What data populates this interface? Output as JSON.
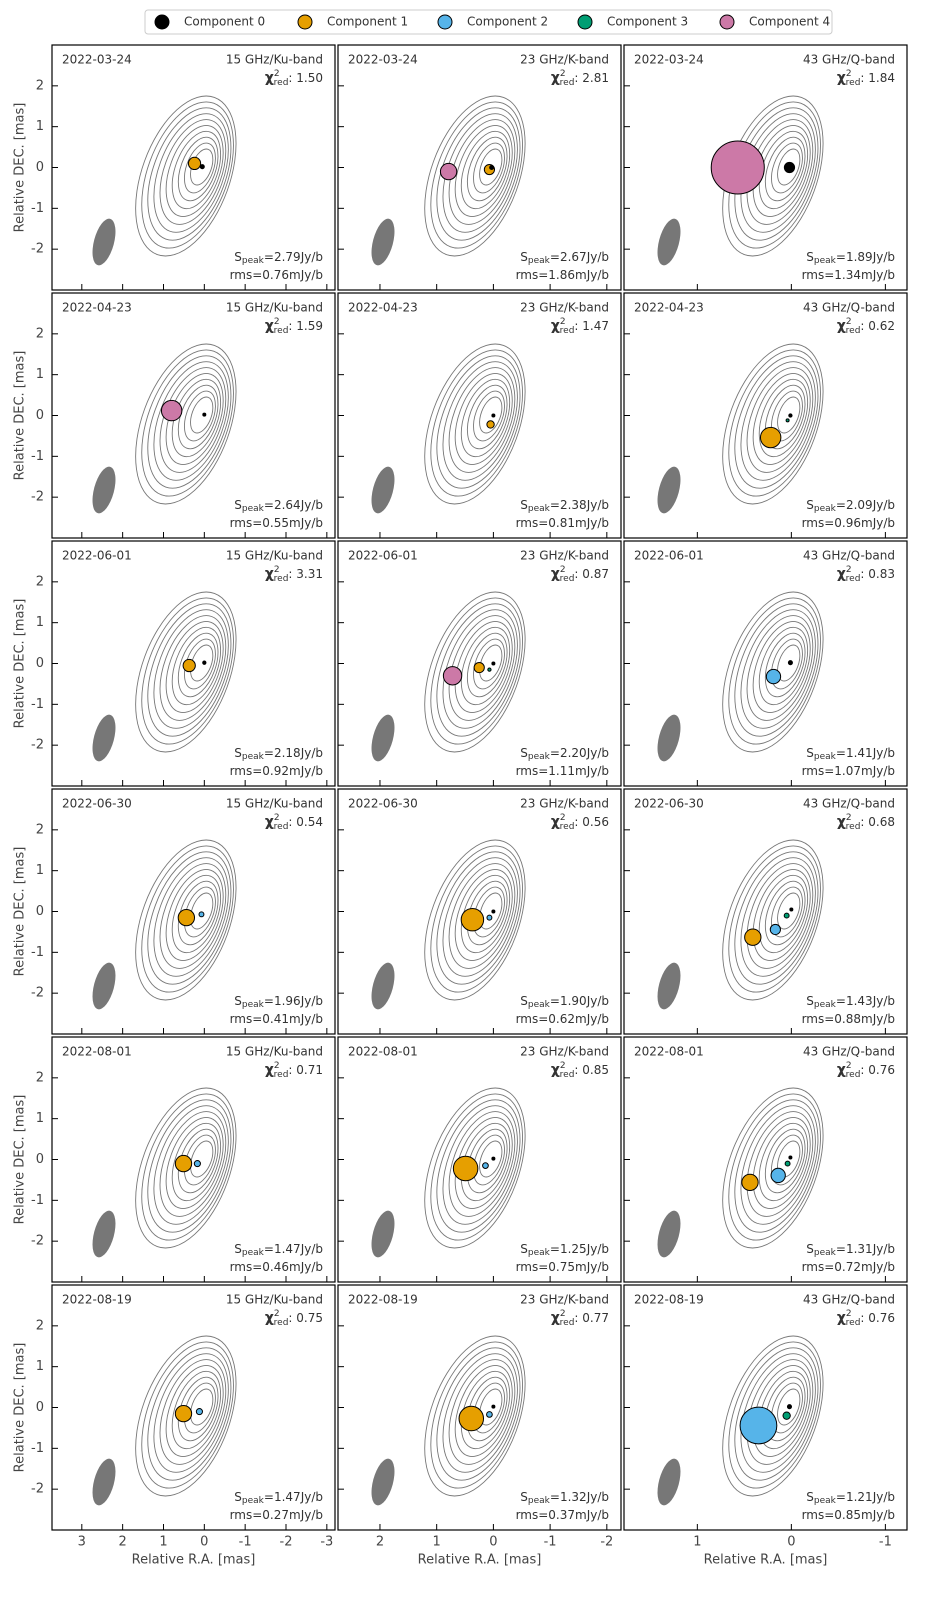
{
  "legend": [
    {
      "name": "Component 0",
      "color": "#000000"
    },
    {
      "name": "Component 1",
      "color": "#e69f00"
    },
    {
      "name": "Component 2",
      "color": "#56b4e9"
    },
    {
      "name": "Component 3",
      "color": "#009e73"
    },
    {
      "name": "Component 4",
      "color": "#cc79a7"
    }
  ],
  "labels": {
    "s": "S",
    "peak": "peak",
    "eq": "=",
    "rms": "rms=",
    "chi": "χ",
    "sup": "2",
    "red": "red",
    "colon": ": "
  },
  "chart_data": [
    {
      "type": "scatter",
      "date": "2022-03-24",
      "band": "15 GHz/Ku-band",
      "chi2": "1.50",
      "speak": "2.79Jy/b",
      "rms": "0.76mJy/b",
      "ylabel": "Relative DEC. [mas]",
      "xlim": [
        3.73,
        -3.2
      ],
      "ylim": [
        -3,
        3
      ],
      "xticks": [
        3,
        2,
        1,
        0,
        -1,
        -2,
        -3
      ],
      "yticks": [
        -2,
        -1,
        0,
        1,
        2
      ],
      "series": [
        {
          "name": "Component 1",
          "x": [
            0.24
          ],
          "values": [
            0.1
          ],
          "sizes": [
            0.3
          ]
        },
        {
          "name": "Component 0",
          "x": [
            0.05
          ],
          "values": [
            0.02
          ],
          "sizes": [
            0.1
          ]
        }
      ]
    },
    {
      "type": "scatter",
      "date": "2022-03-24",
      "band": "23 GHz/K-band",
      "chi2": "2.81",
      "speak": "2.67Jy/b",
      "rms": "1.86mJy/b",
      "xlim": [
        2.74,
        -2.25
      ],
      "ylim": [
        -3,
        3
      ],
      "xticks": [
        2,
        1,
        0,
        -1,
        -2
      ],
      "yticks": [
        -2,
        -1,
        0,
        1,
        2
      ],
      "series": [
        {
          "name": "Component 4",
          "x": [
            0.79
          ],
          "values": [
            -0.1
          ],
          "sizes": [
            0.4
          ]
        },
        {
          "name": "Component 1",
          "x": [
            0.07
          ],
          "values": [
            -0.05
          ],
          "sizes": [
            0.25
          ]
        },
        {
          "name": "Component 0",
          "x": [
            0.03
          ],
          "values": [
            0
          ],
          "sizes": [
            0.1
          ]
        }
      ]
    },
    {
      "type": "scatter",
      "date": "2022-03-24",
      "band": "43 GHz/Q-band",
      "chi2": "1.84",
      "speak": "1.89Jy/b",
      "rms": "1.34mJy/b",
      "xlim": [
        1.78,
        -1.23
      ],
      "ylim": [
        -3,
        3
      ],
      "xticks": [
        1,
        0,
        -1
      ],
      "yticks": [
        -2,
        -1,
        0,
        1,
        2
      ],
      "series": [
        {
          "name": "Component 4",
          "x": [
            0.57
          ],
          "values": [
            0
          ],
          "sizes": [
            1.3
          ]
        },
        {
          "name": "Component 0",
          "x": [
            0.02
          ],
          "values": [
            0
          ],
          "sizes": [
            0.25
          ]
        }
      ]
    },
    {
      "type": "scatter",
      "date": "2022-04-23",
      "band": "15 GHz/Ku-band",
      "chi2": "1.59",
      "speak": "2.64Jy/b",
      "rms": "0.55mJy/b",
      "ylabel": "Relative DEC. [mas]",
      "xlim": [
        3.73,
        -3.2
      ],
      "ylim": [
        -3,
        3
      ],
      "xticks": [
        3,
        2,
        1,
        0,
        -1,
        -2,
        -3
      ],
      "yticks": [
        -2,
        -1,
        0,
        1,
        2
      ],
      "series": [
        {
          "name": "Component 4",
          "x": [
            0.8
          ],
          "values": [
            0.12
          ],
          "sizes": [
            0.5
          ]
        },
        {
          "name": "Component 0",
          "x": [
            0
          ],
          "values": [
            0.02
          ],
          "sizes": [
            0.05
          ]
        }
      ]
    },
    {
      "type": "scatter",
      "date": "2022-04-23",
      "band": "23 GHz/K-band",
      "chi2": "1.47",
      "speak": "2.38Jy/b",
      "rms": "0.81mJy/b",
      "xlim": [
        2.74,
        -2.25
      ],
      "ylim": [
        -3,
        3
      ],
      "xticks": [
        2,
        1,
        0,
        -1,
        -2
      ],
      "yticks": [
        -2,
        -1,
        0,
        1,
        2
      ],
      "series": [
        {
          "name": "Component 1",
          "x": [
            0.05
          ],
          "values": [
            -0.22
          ],
          "sizes": [
            0.18
          ]
        },
        {
          "name": "Component 0",
          "x": [
            0
          ],
          "values": [
            0
          ],
          "sizes": [
            0.06
          ]
        }
      ]
    },
    {
      "type": "scatter",
      "date": "2022-04-23",
      "band": "43 GHz/Q-band",
      "chi2": "0.62",
      "speak": "2.09Jy/b",
      "rms": "0.96mJy/b",
      "xlim": [
        1.78,
        -1.23
      ],
      "ylim": [
        -3,
        3
      ],
      "xticks": [
        1,
        0,
        -1
      ],
      "yticks": [
        -2,
        -1,
        0,
        1,
        2
      ],
      "series": [
        {
          "name": "Component 1",
          "x": [
            0.22
          ],
          "values": [
            -0.54
          ],
          "sizes": [
            0.5
          ]
        },
        {
          "name": "Component 3",
          "x": [
            0.04
          ],
          "values": [
            -0.12
          ],
          "sizes": [
            0.06
          ]
        },
        {
          "name": "Component 0",
          "x": [
            0.01
          ],
          "values": [
            0
          ],
          "sizes": [
            0.08
          ]
        }
      ]
    },
    {
      "type": "scatter",
      "date": "2022-06-01",
      "band": "15 GHz/Ku-band",
      "chi2": "3.31",
      "speak": "2.18Jy/b",
      "rms": "0.92mJy/b",
      "ylabel": "Relative DEC. [mas]",
      "xlim": [
        3.73,
        -3.2
      ],
      "ylim": [
        -3,
        3
      ],
      "xticks": [
        3,
        2,
        1,
        0,
        -1,
        -2,
        -3
      ],
      "yticks": [
        -2,
        -1,
        0,
        1,
        2
      ],
      "series": [
        {
          "name": "Component 1",
          "x": [
            0.37
          ],
          "values": [
            -0.05
          ],
          "sizes": [
            0.3
          ]
        },
        {
          "name": "Component 0",
          "x": [
            0
          ],
          "values": [
            0.02
          ],
          "sizes": [
            0.08
          ]
        }
      ]
    },
    {
      "type": "scatter",
      "date": "2022-06-01",
      "band": "23 GHz/K-band",
      "chi2": "0.87",
      "speak": "2.20Jy/b",
      "rms": "1.11mJy/b",
      "xlim": [
        2.74,
        -2.25
      ],
      "ylim": [
        -3,
        3
      ],
      "xticks": [
        2,
        1,
        0,
        -1,
        -2
      ],
      "yticks": [
        -2,
        -1,
        0,
        1,
        2
      ],
      "series": [
        {
          "name": "Component 4",
          "x": [
            0.72
          ],
          "values": [
            -0.3
          ],
          "sizes": [
            0.45
          ]
        },
        {
          "name": "Component 1",
          "x": [
            0.25
          ],
          "values": [
            -0.1
          ],
          "sizes": [
            0.25
          ]
        },
        {
          "name": "Component 3",
          "x": [
            0.07
          ],
          "values": [
            -0.15
          ],
          "sizes": [
            0.08
          ]
        },
        {
          "name": "Component 0",
          "x": [
            0
          ],
          "values": [
            0
          ],
          "sizes": [
            0.05
          ]
        }
      ]
    },
    {
      "type": "scatter",
      "date": "2022-06-01",
      "band": "43 GHz/Q-band",
      "chi2": "0.83",
      "speak": "1.41Jy/b",
      "rms": "1.07mJy/b",
      "xlim": [
        1.78,
        -1.23
      ],
      "ylim": [
        -3,
        3
      ],
      "xticks": [
        1,
        0,
        -1
      ],
      "yticks": [
        -2,
        -1,
        0,
        1,
        2
      ],
      "series": [
        {
          "name": "Component 2",
          "x": [
            0.19
          ],
          "values": [
            -0.32
          ],
          "sizes": [
            0.35
          ]
        },
        {
          "name": "Component 0",
          "x": [
            0.01
          ],
          "values": [
            0.02
          ],
          "sizes": [
            0.1
          ]
        }
      ]
    },
    {
      "type": "scatter",
      "date": "2022-06-30",
      "band": "15 GHz/Ku-band",
      "chi2": "0.54",
      "speak": "1.96Jy/b",
      "rms": "0.41mJy/b",
      "ylabel": "Relative DEC. [mas]",
      "xlim": [
        3.73,
        -3.2
      ],
      "ylim": [
        -3,
        3
      ],
      "xticks": [
        3,
        2,
        1,
        0,
        -1,
        -2,
        -3
      ],
      "yticks": [
        -2,
        -1,
        0,
        1,
        2
      ],
      "series": [
        {
          "name": "Component 1",
          "x": [
            0.44
          ],
          "values": [
            -0.15
          ],
          "sizes": [
            0.4
          ]
        },
        {
          "name": "Component 2",
          "x": [
            0.07
          ],
          "values": [
            -0.07
          ],
          "sizes": [
            0.12
          ]
        }
      ]
    },
    {
      "type": "scatter",
      "date": "2022-06-30",
      "band": "23 GHz/K-band",
      "chi2": "0.56",
      "speak": "1.90Jy/b",
      "rms": "0.62mJy/b",
      "xlim": [
        2.74,
        -2.25
      ],
      "ylim": [
        -3,
        3
      ],
      "xticks": [
        2,
        1,
        0,
        -1,
        -2
      ],
      "yticks": [
        -2,
        -1,
        0,
        1,
        2
      ],
      "series": [
        {
          "name": "Component 1",
          "x": [
            0.37
          ],
          "values": [
            -0.2
          ],
          "sizes": [
            0.55
          ]
        },
        {
          "name": "Component 2",
          "x": [
            0.07
          ],
          "values": [
            -0.15
          ],
          "sizes": [
            0.12
          ]
        },
        {
          "name": "Component 0",
          "x": [
            0
          ],
          "values": [
            0
          ],
          "sizes": [
            0.05
          ]
        }
      ]
    },
    {
      "type": "scatter",
      "date": "2022-06-30",
      "band": "43 GHz/Q-band",
      "chi2": "0.68",
      "speak": "1.43Jy/b",
      "rms": "0.88mJy/b",
      "xlim": [
        1.78,
        -1.23
      ],
      "ylim": [
        -3,
        3
      ],
      "xticks": [
        1,
        0,
        -1
      ],
      "yticks": [
        -2,
        -1,
        0,
        1,
        2
      ],
      "series": [
        {
          "name": "Component 1",
          "x": [
            0.41
          ],
          "values": [
            -0.63
          ],
          "sizes": [
            0.4
          ]
        },
        {
          "name": "Component 2",
          "x": [
            0.17
          ],
          "values": [
            -0.44
          ],
          "sizes": [
            0.25
          ]
        },
        {
          "name": "Component 3",
          "x": [
            0.05
          ],
          "values": [
            -0.1
          ],
          "sizes": [
            0.12
          ]
        },
        {
          "name": "Component 0",
          "x": [
            0
          ],
          "values": [
            0.05
          ],
          "sizes": [
            0.05
          ]
        }
      ]
    },
    {
      "type": "scatter",
      "date": "2022-08-01",
      "band": "15 GHz/Ku-band",
      "chi2": "0.71",
      "speak": "1.47Jy/b",
      "rms": "0.46mJy/b",
      "ylabel": "Relative DEC. [mas]",
      "xlim": [
        3.73,
        -3.2
      ],
      "ylim": [
        -3,
        3
      ],
      "xticks": [
        3,
        2,
        1,
        0,
        -1,
        -2,
        -3
      ],
      "yticks": [
        -2,
        -1,
        0,
        1,
        2
      ],
      "series": [
        {
          "name": "Component 1",
          "x": [
            0.51
          ],
          "values": [
            -0.1
          ],
          "sizes": [
            0.4
          ]
        },
        {
          "name": "Component 2",
          "x": [
            0.17
          ],
          "values": [
            -0.1
          ],
          "sizes": [
            0.15
          ]
        }
      ]
    },
    {
      "type": "scatter",
      "date": "2022-08-01",
      "band": "23 GHz/K-band",
      "chi2": "0.85",
      "speak": "1.25Jy/b",
      "rms": "0.75mJy/b",
      "xlim": [
        2.74,
        -2.25
      ],
      "ylim": [
        -3,
        3
      ],
      "xticks": [
        2,
        1,
        0,
        -1,
        -2
      ],
      "yticks": [
        -2,
        -1,
        0,
        1,
        2
      ],
      "series": [
        {
          "name": "Component 1",
          "x": [
            0.49
          ],
          "values": [
            -0.22
          ],
          "sizes": [
            0.6
          ]
        },
        {
          "name": "Component 2",
          "x": [
            0.14
          ],
          "values": [
            -0.15
          ],
          "sizes": [
            0.14
          ]
        },
        {
          "name": "Component 0",
          "x": [
            0
          ],
          "values": [
            0.02
          ],
          "sizes": [
            0.05
          ]
        }
      ]
    },
    {
      "type": "scatter",
      "date": "2022-08-01",
      "band": "43 GHz/Q-band",
      "chi2": "0.76",
      "speak": "1.31Jy/b",
      "rms": "0.72mJy/b",
      "xlim": [
        1.78,
        -1.23
      ],
      "ylim": [
        -3,
        3
      ],
      "xticks": [
        1,
        0,
        -1
      ],
      "yticks": [
        -2,
        -1,
        0,
        1,
        2
      ],
      "series": [
        {
          "name": "Component 1",
          "x": [
            0.44
          ],
          "values": [
            -0.56
          ],
          "sizes": [
            0.4
          ]
        },
        {
          "name": "Component 2",
          "x": [
            0.14
          ],
          "values": [
            -0.39
          ],
          "sizes": [
            0.35
          ]
        },
        {
          "name": "Component 3",
          "x": [
            0.04
          ],
          "values": [
            -0.1
          ],
          "sizes": [
            0.12
          ]
        },
        {
          "name": "Component 0",
          "x": [
            0.01
          ],
          "values": [
            0.05
          ],
          "sizes": [
            0.05
          ]
        }
      ]
    },
    {
      "type": "scatter",
      "date": "2022-08-19",
      "band": "15 GHz/Ku-band",
      "chi2": "0.75",
      "speak": "1.47Jy/b",
      "rms": "0.27mJy/b",
      "ylabel": "Relative DEC. [mas]",
      "xlabel": "Relative R.A. [mas]",
      "xlim": [
        3.73,
        -3.2
      ],
      "ylim": [
        -3,
        3
      ],
      "xticks": [
        3,
        2,
        1,
        0,
        -1,
        -2,
        -3
      ],
      "yticks": [
        -2,
        -1,
        0,
        1,
        2
      ],
      "series": [
        {
          "name": "Component 1",
          "x": [
            0.51
          ],
          "values": [
            -0.15
          ],
          "sizes": [
            0.4
          ]
        },
        {
          "name": "Component 2",
          "x": [
            0.12
          ],
          "values": [
            -0.1
          ],
          "sizes": [
            0.15
          ]
        }
      ]
    },
    {
      "type": "scatter",
      "date": "2022-08-19",
      "band": "23 GHz/K-band",
      "chi2": "0.77",
      "speak": "1.32Jy/b",
      "rms": "0.37mJy/b",
      "xlabel": "Relative R.A. [mas]",
      "xlim": [
        2.74,
        -2.25
      ],
      "ylim": [
        -3,
        3
      ],
      "xticks": [
        2,
        1,
        0,
        -1,
        -2
      ],
      "yticks": [
        -2,
        -1,
        0,
        1,
        2
      ],
      "series": [
        {
          "name": "Component 1",
          "x": [
            0.39
          ],
          "values": [
            -0.27
          ],
          "sizes": [
            0.6
          ]
        },
        {
          "name": "Component 2",
          "x": [
            0.07
          ],
          "values": [
            -0.17
          ],
          "sizes": [
            0.14
          ]
        },
        {
          "name": "Component 0",
          "x": [
            0
          ],
          "values": [
            0.02
          ],
          "sizes": [
            0.05
          ]
        }
      ]
    },
    {
      "type": "scatter",
      "date": "2022-08-19",
      "band": "43 GHz/Q-band",
      "chi2": "0.76",
      "speak": "1.21Jy/b",
      "rms": "0.85mJy/b",
      "xlabel": "Relative R.A. [mas]",
      "xlim": [
        1.78,
        -1.23
      ],
      "ylim": [
        -3,
        3
      ],
      "xticks": [
        1,
        0,
        -1
      ],
      "yticks": [
        -2,
        -1,
        0,
        1,
        2
      ],
      "series": [
        {
          "name": "Component 2",
          "x": [
            0.35
          ],
          "values": [
            -0.44
          ],
          "sizes": [
            0.9
          ]
        },
        {
          "name": "Component 3",
          "x": [
            0.05
          ],
          "values": [
            -0.2
          ],
          "sizes": [
            0.18
          ]
        },
        {
          "name": "Component 0",
          "x": [
            0.02
          ],
          "values": [
            0.02
          ],
          "sizes": [
            0.1
          ]
        }
      ]
    }
  ]
}
